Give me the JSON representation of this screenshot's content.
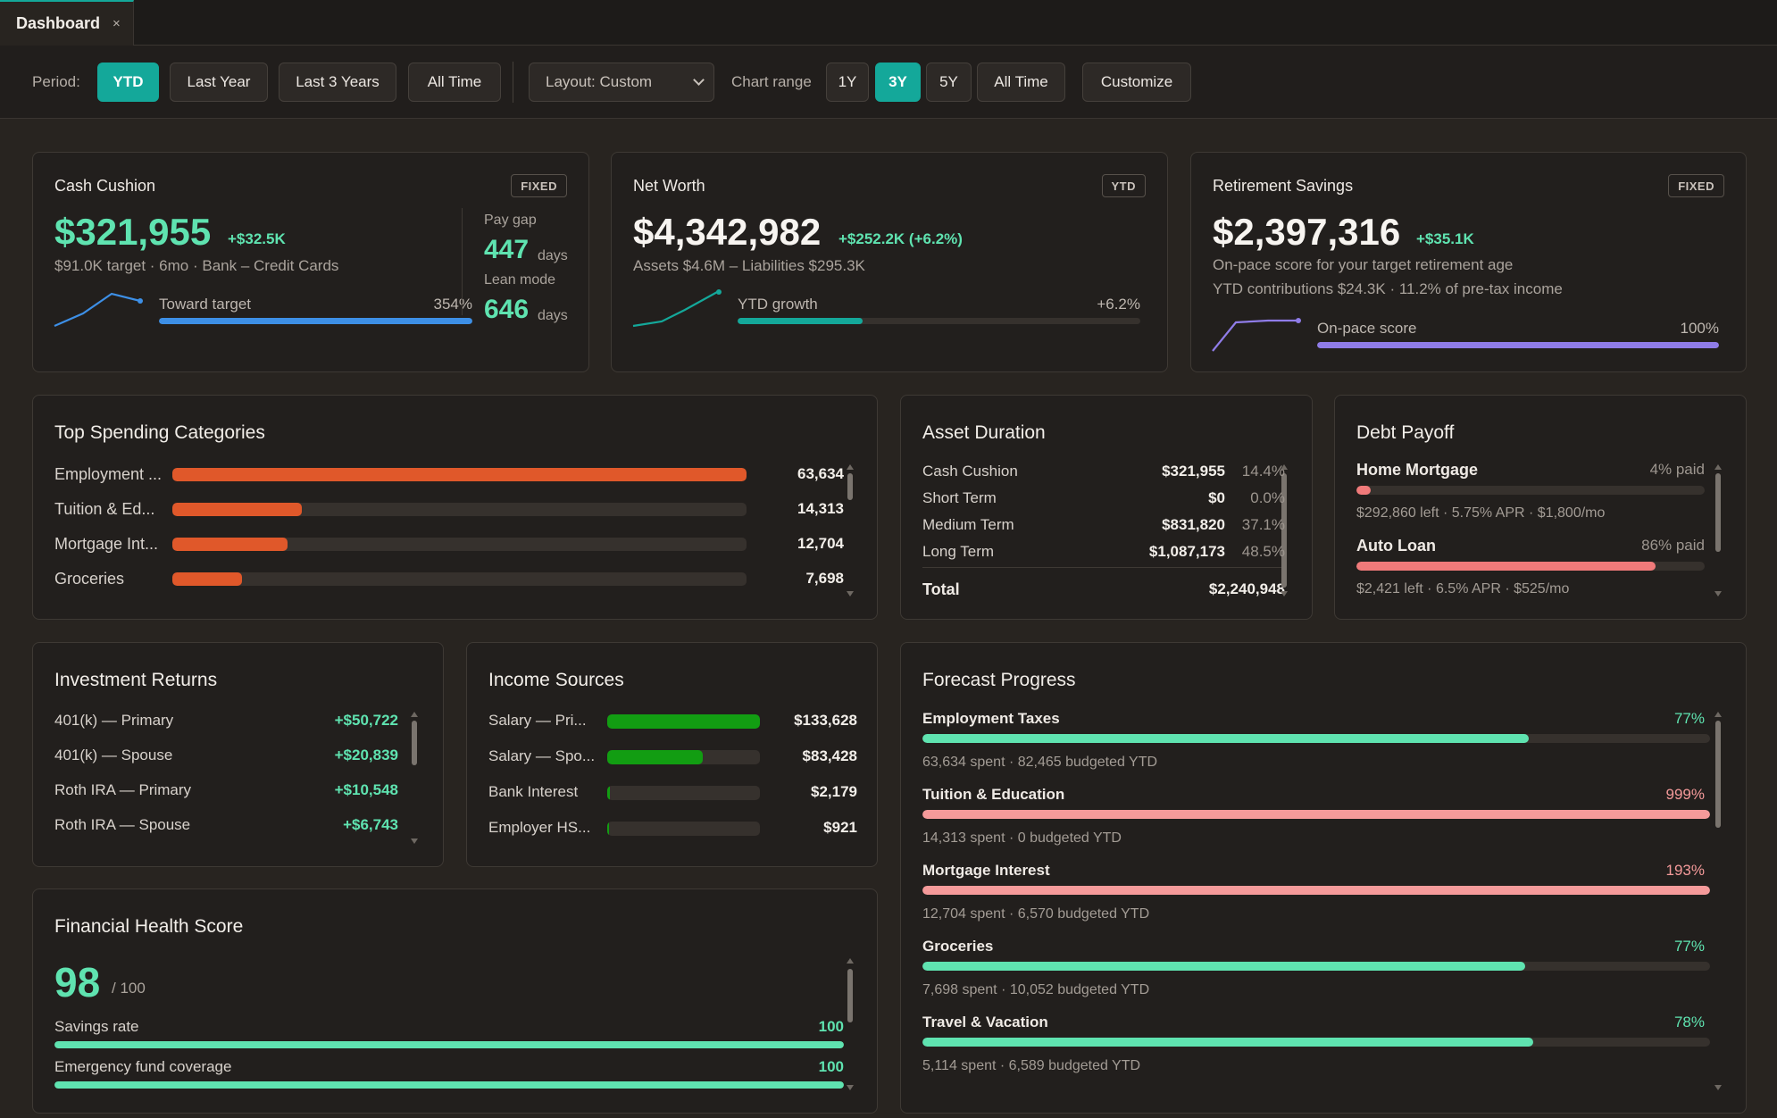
{
  "tab": {
    "label": "Dashboard",
    "close": "×"
  },
  "toolbar": {
    "period_label": "Period:",
    "periods": [
      "YTD",
      "Last Year",
      "Last 3 Years",
      "All Time"
    ],
    "active_period": "YTD",
    "layout_select": "Layout: Custom",
    "chart_range_label": "Chart range",
    "ranges": [
      "1Y",
      "3Y",
      "5Y",
      "All Time"
    ],
    "active_range": "3Y",
    "customize": "Customize"
  },
  "colors": {
    "accent": "#14a89a",
    "green": "#5fe3b0",
    "orange": "#e0582a",
    "blue": "#3d8fe6",
    "purple": "#8f7ce8",
    "red": "#f07a7a",
    "pink": "#f59a9a",
    "income_green": "#129d12"
  },
  "cash_cushion": {
    "title": "Cash Cushion",
    "badge": "FIXED",
    "value": "$321,955",
    "delta": "+$32.5K",
    "sub": "$91.0K target · 6mo · Bank – Credit Cards",
    "bar_label": "Toward target",
    "bar_value": "354%",
    "bar_fill": 1.0,
    "pay_gap_label": "Pay gap",
    "pay_gap_value": "447",
    "pay_gap_unit": "days",
    "lean_label": "Lean mode",
    "lean_value": "646",
    "lean_unit": "days"
  },
  "net_worth": {
    "title": "Net Worth",
    "badge": "YTD",
    "value": "$4,342,982",
    "delta": "+$252.2K (+6.2%)",
    "sub": "Assets $4.6M – Liabilities $295.3K",
    "bar_label": "YTD growth",
    "bar_value": "+6.2%",
    "bar_fill": 0.31
  },
  "retirement": {
    "title": "Retirement Savings",
    "badge": "FIXED",
    "value": "$2,397,316",
    "delta": "+$35.1K",
    "sub1": "On-pace score for your target retirement age",
    "sub2": "YTD contributions $24.3K · 11.2% of pre-tax income",
    "bar_label": "On-pace score",
    "bar_value": "100%",
    "bar_fill": 1.0
  },
  "top_spending": {
    "title": "Top Spending Categories",
    "items": [
      {
        "label": "Employment ...",
        "value": "63,634",
        "amount": 63634
      },
      {
        "label": "Tuition & Ed...",
        "value": "14,313",
        "amount": 14313
      },
      {
        "label": "Mortgage Int...",
        "value": "12,704",
        "amount": 12704
      },
      {
        "label": "Groceries",
        "value": "7,698",
        "amount": 7698
      }
    ]
  },
  "asset_duration": {
    "title": "Asset Duration",
    "items": [
      {
        "label": "Cash Cushion",
        "value": "$321,955",
        "pct": "14.4%"
      },
      {
        "label": "Short Term",
        "value": "$0",
        "pct": "0.0%"
      },
      {
        "label": "Medium Term",
        "value": "$831,820",
        "pct": "37.1%"
      },
      {
        "label": "Long Term",
        "value": "$1,087,173",
        "pct": "48.5%"
      }
    ],
    "total_label": "Total",
    "total_value": "$2,240,948"
  },
  "debt_payoff": {
    "title": "Debt Payoff",
    "items": [
      {
        "name": "Home Mortgage",
        "paid": "4% paid",
        "fraction": 0.04,
        "note": "$292,860 left · 5.75% APR · $1,800/mo"
      },
      {
        "name": "Auto Loan",
        "paid": "86% paid",
        "fraction": 0.86,
        "note": "$2,421 left · 6.5% APR · $525/mo"
      }
    ]
  },
  "investment_returns": {
    "title": "Investment Returns",
    "items": [
      {
        "label": "401(k) — Primary",
        "value": "+$50,722"
      },
      {
        "label": "401(k) — Spouse",
        "value": "+$20,839"
      },
      {
        "label": "Roth IRA — Primary",
        "value": "+$10,548"
      },
      {
        "label": "Roth IRA — Spouse",
        "value": "+$6,743"
      }
    ]
  },
  "income_sources": {
    "title": "Income Sources",
    "items": [
      {
        "label": "Salary — Pri...",
        "value": "$133,628",
        "amount": 133628
      },
      {
        "label": "Salary — Spo...",
        "value": "$83,428",
        "amount": 83428
      },
      {
        "label": "Bank Interest",
        "value": "$2,179",
        "amount": 2179
      },
      {
        "label": "Employer HS...",
        "value": "$921",
        "amount": 921
      }
    ]
  },
  "forecast": {
    "title": "Forecast Progress",
    "items": [
      {
        "name": "Employment Taxes",
        "pct": "77%",
        "fraction": 0.77,
        "status": "ok",
        "note": "63,634 spent · 82,465 budgeted YTD"
      },
      {
        "name": "Tuition & Education",
        "pct": "999%",
        "fraction": 1.0,
        "status": "over",
        "note": "14,313 spent · 0 budgeted YTD"
      },
      {
        "name": "Mortgage Interest",
        "pct": "193%",
        "fraction": 1.0,
        "status": "over",
        "note": "12,704 spent · 6,570 budgeted YTD"
      },
      {
        "name": "Groceries",
        "pct": "77%",
        "fraction": 0.765,
        "status": "ok",
        "note": "7,698 spent · 10,052 budgeted YTD"
      },
      {
        "name": "Travel & Vacation",
        "pct": "78%",
        "fraction": 0.776,
        "status": "ok",
        "note": "5,114 spent · 6,589 budgeted YTD"
      }
    ]
  },
  "health": {
    "title": "Financial Health Score",
    "score": "98",
    "of": "/ 100",
    "items": [
      {
        "label": "Savings rate",
        "value": "100",
        "fraction": 1.0
      },
      {
        "label": "Emergency fund coverage",
        "value": "100",
        "fraction": 1.0
      }
    ]
  }
}
